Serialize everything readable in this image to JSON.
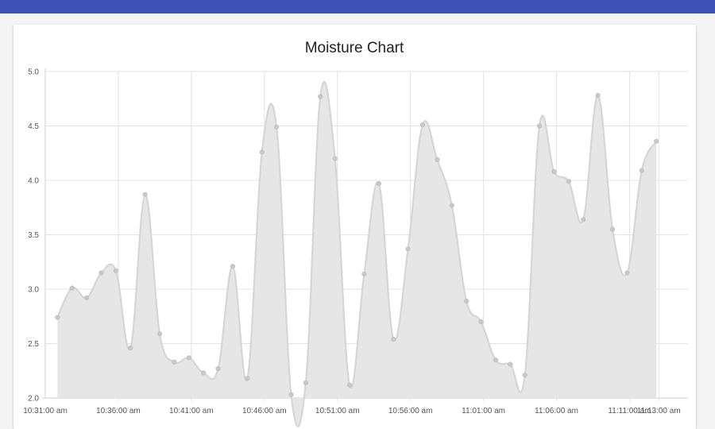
{
  "chart_data": {
    "type": "area",
    "title": "Moisture Chart",
    "xlabel": "",
    "ylabel": "",
    "ylim": [
      2.0,
      5.0
    ],
    "grid": true,
    "yticks": [
      "2.0",
      "2.5",
      "3.0",
      "3.5",
      "4.0",
      "4.5",
      "5.0"
    ],
    "xticks": [
      "10:31:00 am",
      "10:36:00 am",
      "10:41:00 am",
      "10:46:00 am",
      "10:51:00 am",
      "10:56:00 am",
      "11:01:00 am",
      "11:06:00 am",
      "11:11:00 am",
      "11:13:00 am"
    ],
    "x": [
      "10:31:50",
      "10:32:50",
      "10:33:50",
      "10:34:50",
      "10:35:50",
      "10:36:50",
      "10:37:50",
      "10:38:50",
      "10:39:50",
      "10:40:50",
      "10:41:50",
      "10:42:50",
      "10:43:50",
      "10:44:50",
      "10:45:50",
      "10:46:50",
      "10:47:50",
      "10:48:50",
      "10:49:50",
      "10:50:50",
      "10:51:50",
      "10:52:50",
      "10:53:50",
      "10:54:50",
      "10:55:50",
      "10:56:50",
      "10:57:50",
      "10:58:50",
      "10:59:50",
      "11:00:50",
      "11:01:50",
      "11:02:50",
      "11:03:50",
      "11:04:50",
      "11:05:50",
      "11:06:50",
      "11:07:50",
      "11:08:50",
      "11:09:50",
      "11:10:50",
      "11:11:50",
      "11:12:50"
    ],
    "values": [
      2.74,
      3.01,
      2.92,
      3.15,
      3.17,
      2.46,
      3.87,
      2.59,
      2.33,
      2.37,
      2.23,
      2.27,
      3.21,
      2.18,
      4.26,
      4.49,
      2.03,
      2.14,
      4.77,
      4.2,
      2.12,
      3.14,
      3.97,
      2.54,
      3.37,
      4.51,
      4.19,
      3.77,
      2.89,
      2.7,
      2.35,
      2.31,
      2.21,
      4.5,
      4.08,
      3.99,
      3.64,
      4.78,
      3.55,
      3.15,
      4.09,
      4.36
    ],
    "colors": {
      "fill": "#e6e6e6",
      "line": "#d6d6d6",
      "point": "#c8c8c8",
      "grid": "#e3e3e3"
    }
  }
}
